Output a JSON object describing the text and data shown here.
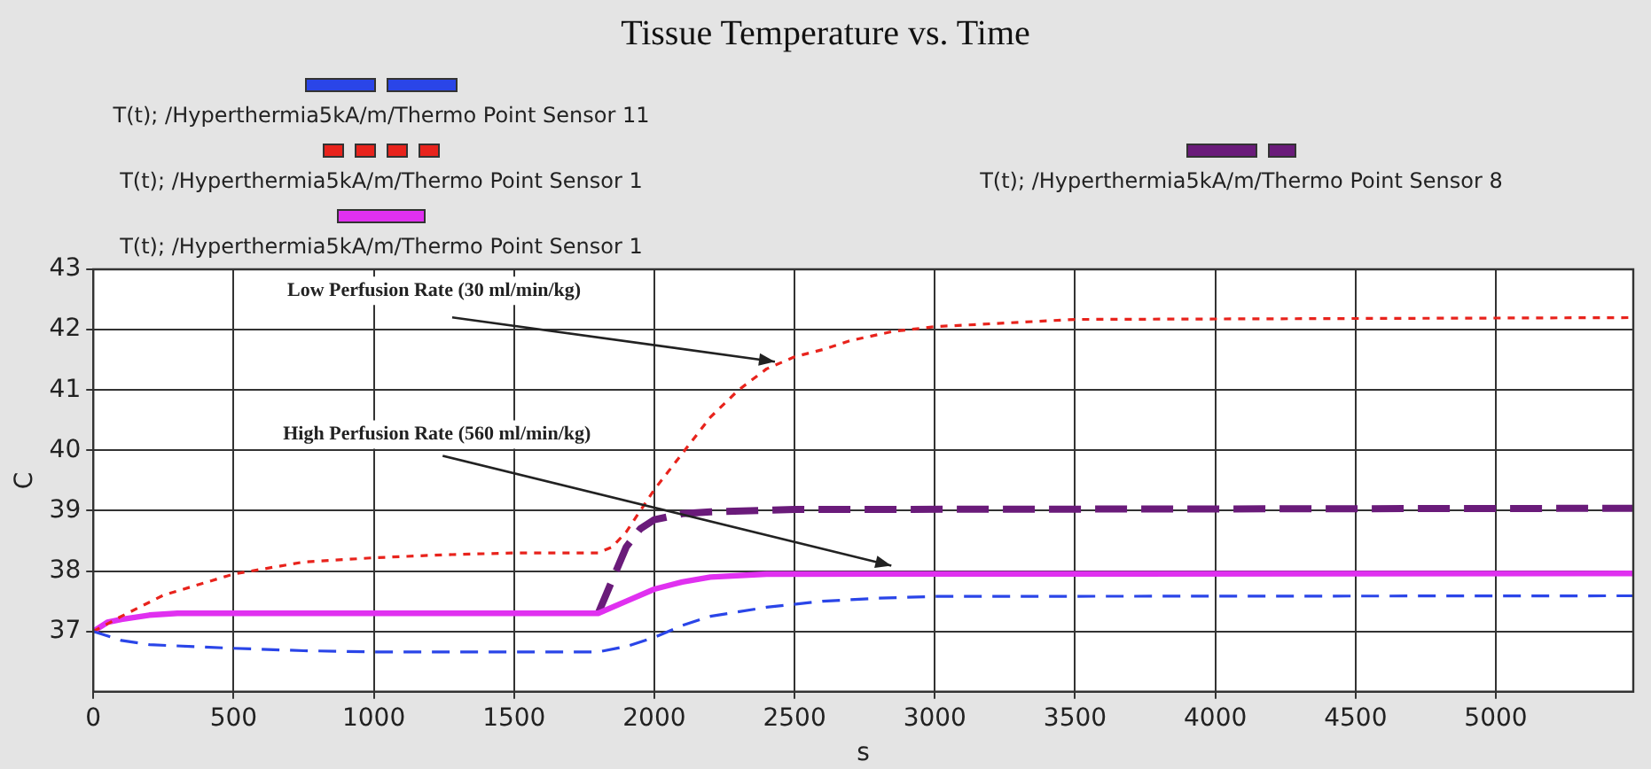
{
  "chart_data": {
    "type": "line",
    "title": "Tissue Temperature vs. Time",
    "xlabel": "s",
    "ylabel": "C",
    "xlim": [
      0,
      5490
    ],
    "xticks": [
      0,
      500,
      1000,
      1500,
      2000,
      2500,
      3000,
      3500,
      4000,
      4500,
      5000
    ],
    "ylim": [
      36,
      43
    ],
    "yticks": [
      37,
      38,
      39,
      40,
      41,
      42,
      43
    ],
    "grid": true,
    "legend": "top",
    "marker": "none",
    "series": [
      {
        "name": "T(t); /Hyperthermia5kA/m/Thermo Point Sensor 11",
        "color": "#2a45e8",
        "line_style": "dashed",
        "x": [
          0,
          100,
          200,
          500,
          750,
          1000,
          1800,
          1900,
          2000,
          2100,
          2200,
          2400,
          2600,
          2800,
          3000,
          5490
        ],
        "values": [
          37,
          36.85,
          36.78,
          36.72,
          36.68,
          36.66,
          36.66,
          36.75,
          36.9,
          37.1,
          37.25,
          37.4,
          37.5,
          37.55,
          37.58,
          37.59
        ]
      },
      {
        "name": "T(t); /Hyperthermia5kA/m/Thermo Point Sensor 1",
        "color": "#e8231c",
        "line_style": "dotted",
        "x": [
          0,
          100,
          250,
          500,
          750,
          1000,
          1250,
          1500,
          1800,
          1850,
          1900,
          2000,
          2100,
          2200,
          2300,
          2400,
          2500,
          2600,
          2700,
          2850,
          3000,
          3500,
          5490
        ],
        "values": [
          37,
          37.25,
          37.6,
          37.95,
          38.15,
          38.22,
          38.27,
          38.3,
          38.3,
          38.4,
          38.65,
          39.35,
          39.95,
          40.55,
          41,
          41.35,
          41.55,
          41.67,
          41.82,
          41.97,
          42.05,
          42.17,
          42.2
        ]
      },
      {
        "name": "T(t); /Hyperthermia5kA/m/Thermo Point Sensor 1",
        "color": "#e030f0",
        "line_style": "solid",
        "x": [
          0,
          50,
          100,
          200,
          300,
          1800,
          1900,
          2000,
          2100,
          2200,
          2400,
          5490
        ],
        "values": [
          37,
          37.15,
          37.2,
          37.27,
          37.3,
          37.3,
          37.5,
          37.7,
          37.82,
          37.9,
          37.95,
          37.96
        ]
      },
      {
        "name": "T(t); /Hyperthermia5kA/m/Thermo Point Sensor 8",
        "color": "#6a1b7a",
        "line_style": "dashed",
        "x": [
          1800,
          1850,
          1900,
          1950,
          2000,
          2100,
          2200,
          2500,
          5490
        ],
        "values": [
          37.3,
          37.85,
          38.4,
          38.7,
          38.85,
          38.95,
          38.98,
          39.02,
          39.04
        ]
      }
    ],
    "annotations": [
      {
        "text": "Low Perfusion Rate (30 ml/min/kg)",
        "x": 2430,
        "y": 41.47
      },
      {
        "text": "High Perfusion Rate (560 ml/min/kg)",
        "x": 2845,
        "y": 38.09
      }
    ]
  }
}
